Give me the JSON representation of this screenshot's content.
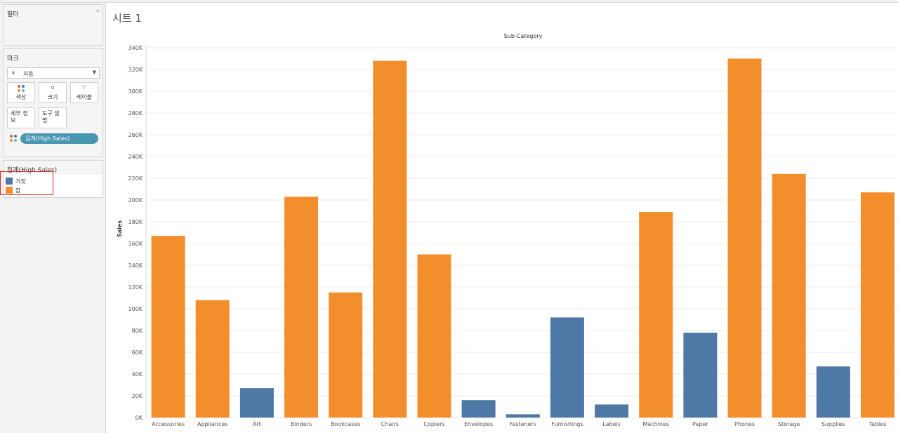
{
  "sheet_title": "시트 1",
  "filters": {
    "title": "필터"
  },
  "marks": {
    "title": "마크",
    "type_label": "자동",
    "buttons": {
      "color": "색상",
      "size": "크기",
      "label": "레이블",
      "detail": "세부 정보",
      "tooltip": "도구 설명"
    },
    "pill": "집계(High Sales)"
  },
  "legend": {
    "title": "집계(High Sales)",
    "items": [
      {
        "label": "거짓",
        "color": "#4e79a7"
      },
      {
        "label": "참",
        "color": "#f28e2b"
      }
    ]
  },
  "chart_data": {
    "type": "bar",
    "title": "Sub-Category",
    "ylabel": "Sales",
    "ylim": [
      0,
      340000
    ],
    "y_ticks": [
      "0K",
      "20K",
      "40K",
      "60K",
      "80K",
      "100K",
      "120K",
      "140K",
      "160K",
      "180K",
      "200K",
      "220K",
      "240K",
      "260K",
      "280K",
      "300K",
      "320K",
      "340K"
    ],
    "categories": [
      "Accessories",
      "Appliances",
      "Art",
      "Binders",
      "Bookcases",
      "Chairs",
      "Copiers",
      "Envelopes",
      "Fasteners",
      "Furnishings",
      "Labels",
      "Machines",
      "Paper",
      "Phones",
      "Storage",
      "Supplies",
      "Tables"
    ],
    "values": [
      167000,
      108000,
      27000,
      203000,
      115000,
      328000,
      150000,
      16000,
      3000,
      92000,
      12000,
      189000,
      78000,
      330000,
      224000,
      47000,
      207000
    ],
    "high_sales": [
      true,
      true,
      false,
      true,
      true,
      true,
      true,
      false,
      false,
      false,
      false,
      true,
      false,
      true,
      true,
      false,
      true
    ],
    "colors": {
      "true": "#f28e2b",
      "false": "#4e79a7"
    },
    "grid": true
  }
}
